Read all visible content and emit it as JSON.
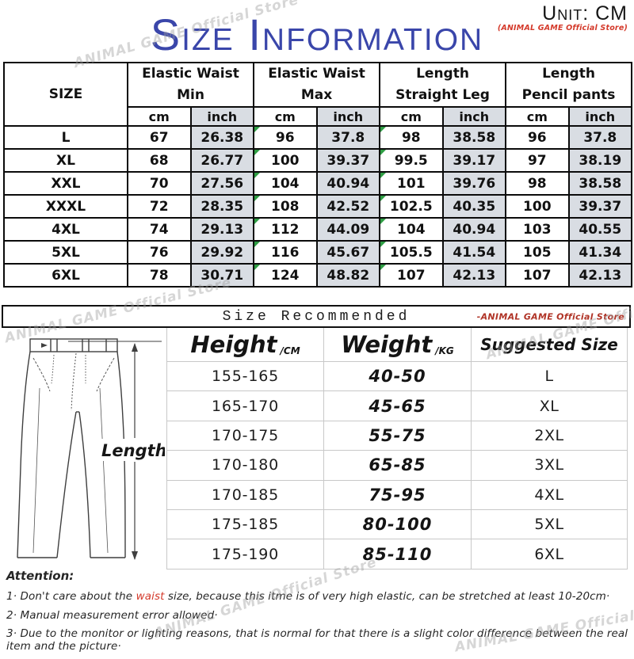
{
  "page": {
    "title": "Size Information",
    "unit_label": "Unit: CM",
    "store_note_top": "(ANIMAL GAME Official Store)"
  },
  "watermark": {
    "text": "ANIMAL GAME Official Store"
  },
  "colors": {
    "title_blue": "#3a46aa",
    "store_red": "#d43a2b",
    "inch_cell_bg": "#d9dde3",
    "comment_triangle_green": "#2f9e44",
    "grid_gray": "#c8c8c8"
  },
  "size_table": {
    "corner": "SIZE",
    "groups": [
      {
        "line1": "Elastic Waist",
        "line2": "Min"
      },
      {
        "line1": "Elastic Waist",
        "line2": "Max"
      },
      {
        "line1": "Length",
        "line2": "Straight Leg"
      },
      {
        "line1": "Length",
        "line2": "Pencil pants"
      }
    ],
    "sub": {
      "cm": "cm",
      "inch": "inch"
    },
    "rows": [
      {
        "size": "L",
        "cells": [
          "67",
          "26.38",
          "96",
          "37.8",
          "98",
          "38.58",
          "96",
          "37.8"
        ]
      },
      {
        "size": "XL",
        "cells": [
          "68",
          "26.77",
          "100",
          "39.37",
          "99.5",
          "39.17",
          "97",
          "38.19"
        ]
      },
      {
        "size": "XXL",
        "cells": [
          "70",
          "27.56",
          "104",
          "40.94",
          "101",
          "39.76",
          "98",
          "38.58"
        ]
      },
      {
        "size": "XXXL",
        "cells": [
          "72",
          "28.35",
          "108",
          "42.52",
          "102.5",
          "40.35",
          "100",
          "39.37"
        ]
      },
      {
        "size": "4XL",
        "cells": [
          "74",
          "29.13",
          "112",
          "44.09",
          "104",
          "40.94",
          "103",
          "40.55"
        ]
      },
      {
        "size": "5XL",
        "cells": [
          "76",
          "29.92",
          "116",
          "45.67",
          "105.5",
          "41.54",
          "105",
          "41.34"
        ]
      },
      {
        "size": "6XL",
        "cells": [
          "78",
          "30.71",
          "124",
          "48.82",
          "107",
          "42.13",
          "107",
          "42.13"
        ]
      }
    ]
  },
  "recommend": {
    "bar_title": "Size Recommended",
    "store_note": "-ANIMAL GAME Official Store",
    "headers": {
      "height": {
        "main": "Height",
        "unit": "/CM"
      },
      "weight": {
        "main": "Weight",
        "unit": "/KG"
      },
      "size": "Suggested Size"
    },
    "rows": [
      {
        "height": "155-165",
        "weight": "40-50",
        "size": "L"
      },
      {
        "height": "165-170",
        "weight": "45-65",
        "size": "XL"
      },
      {
        "height": "170-175",
        "weight": "55-75",
        "size": "2XL"
      },
      {
        "height": "170-180",
        "weight": "65-85",
        "size": "3XL"
      },
      {
        "height": "170-185",
        "weight": "75-95",
        "size": "4XL"
      },
      {
        "height": "175-185",
        "weight": "80-100",
        "size": "5XL"
      },
      {
        "height": "175-190",
        "weight": "85-110",
        "size": "6XL"
      }
    ]
  },
  "pants": {
    "length_label": "Length"
  },
  "attention": {
    "title": "Attention:",
    "items": [
      {
        "pre": "1· Don't care about the ",
        "red": "waist",
        "post": " size, because this itme is of very high elastic, can be stretched at least 10-20cm·"
      },
      {
        "pre": "2· Manual measurement error allowed·",
        "red": "",
        "post": ""
      },
      {
        "pre": "3·  Due to the monitor or lighting reasons, that is normal for that there is a slight color difference between the real item and the picture·",
        "red": "",
        "post": ""
      }
    ]
  }
}
